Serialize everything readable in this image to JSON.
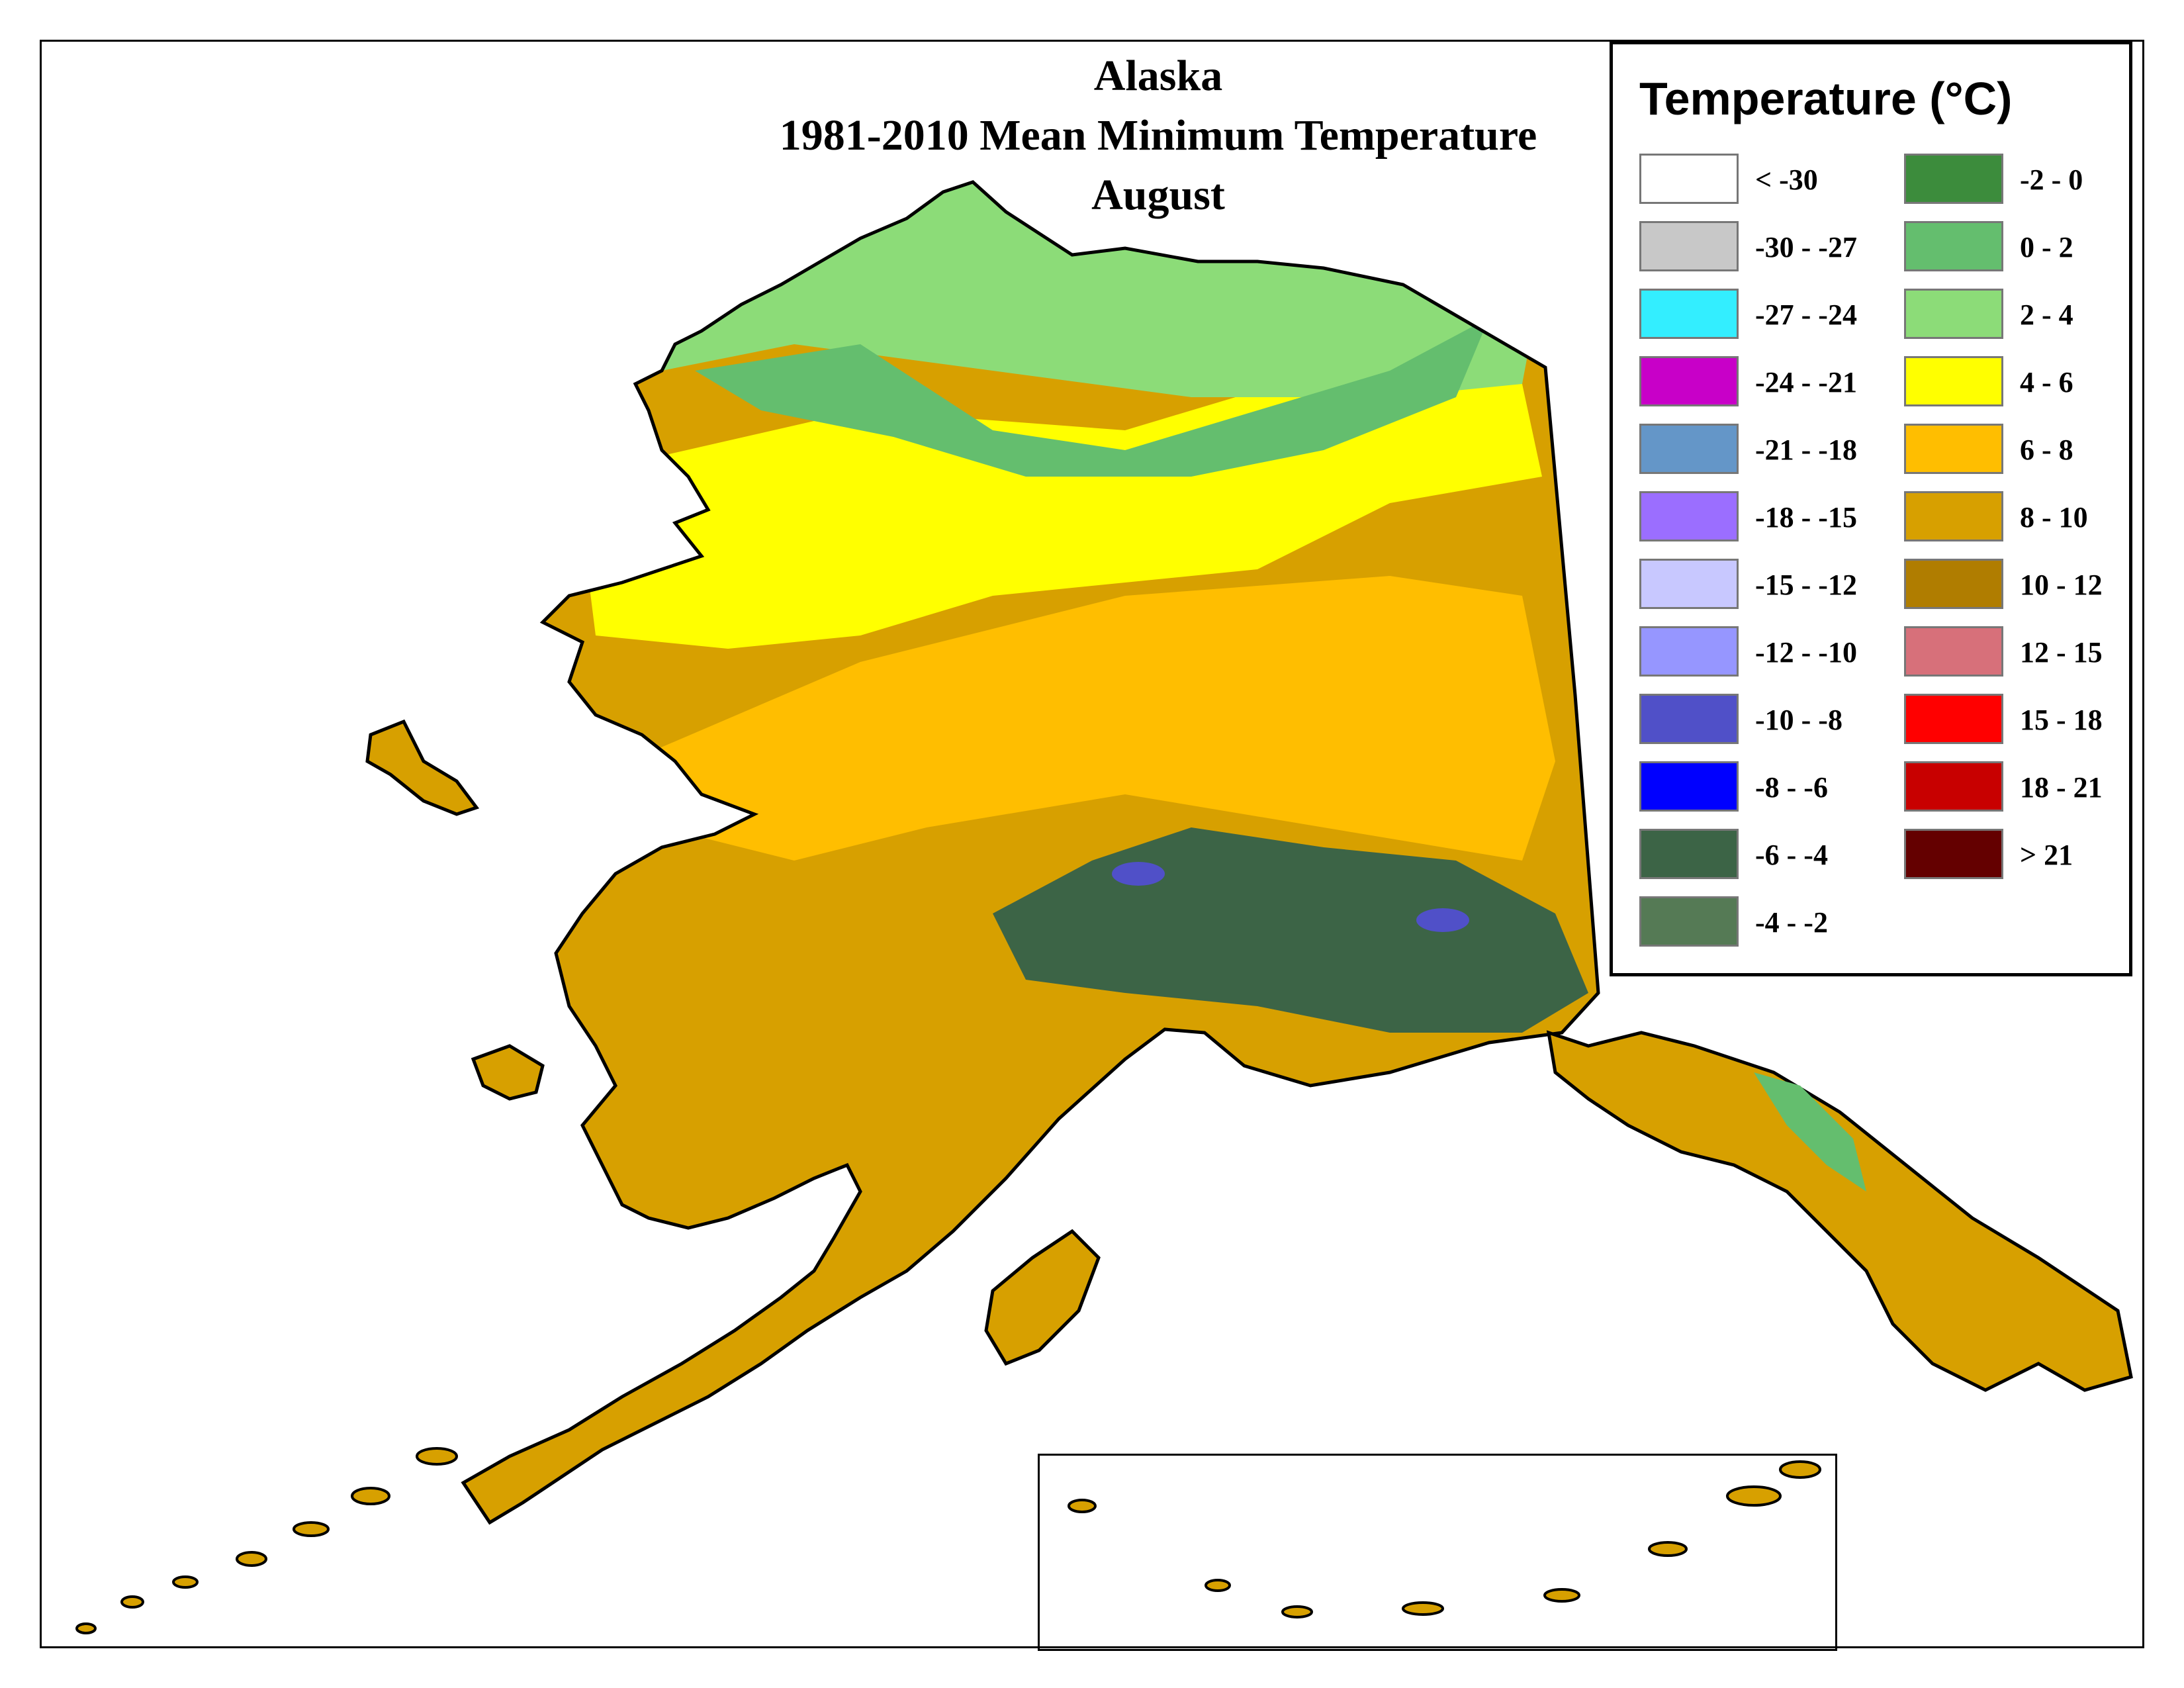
{
  "title": {
    "line1": "Alaska",
    "line2": "1981-2010 Mean Minimum Temperature",
    "line3": "August"
  },
  "legend": {
    "title": "Temperature (°C)",
    "items": [
      {
        "label": "< -30",
        "color": "#ffffff"
      },
      {
        "label": "-30 - -27",
        "color": "#c8c8c8"
      },
      {
        "label": "-27 - -24",
        "color": "#33eeff"
      },
      {
        "label": "-24 - -21",
        "color": "#c800c8"
      },
      {
        "label": "-21 - -18",
        "color": "#6496c8"
      },
      {
        "label": "-18 - -15",
        "color": "#9b6eff"
      },
      {
        "label": "-15 - -12",
        "color": "#c8c8ff"
      },
      {
        "label": "-12 - -10",
        "color": "#9696ff"
      },
      {
        "label": "-10 - -8",
        "color": "#5050c8"
      },
      {
        "label": "-8 - -6",
        "color": "#0000ff"
      },
      {
        "label": "-6 - -4",
        "color": "#3c6446"
      },
      {
        "label": "-4 - -2",
        "color": "#557a55"
      },
      {
        "label": "-2 - 0",
        "color": "#3c8c3c"
      },
      {
        "label": "0 - 2",
        "color": "#64be6e"
      },
      {
        "label": "2 - 4",
        "color": "#8cdc78"
      },
      {
        "label": "4 - 6",
        "color": "#ffff00"
      },
      {
        "label": "6 - 8",
        "color": "#ffbe00"
      },
      {
        "label": "8 - 10",
        "color": "#d7a000"
      },
      {
        "label": "10 - 12",
        "color": "#b07d00"
      },
      {
        "label": "12 - 15",
        "color": "#d7707a"
      },
      {
        "label": "15 - 18",
        "color": "#ff0000"
      },
      {
        "label": "18 - 21",
        "color": "#c80000"
      },
      {
        "label": "> 21",
        "color": "#640000"
      }
    ]
  },
  "map": {
    "region": "Alaska",
    "colors": {
      "north_slope": "#8cdc78",
      "brooks_range": "#64be6e",
      "interior": "#ffbe00",
      "southwest": "#d7a000",
      "band": "#ffff00",
      "mountains": "#3c6446",
      "peaks": "#5050c8",
      "coast_outline": "#000000"
    }
  }
}
